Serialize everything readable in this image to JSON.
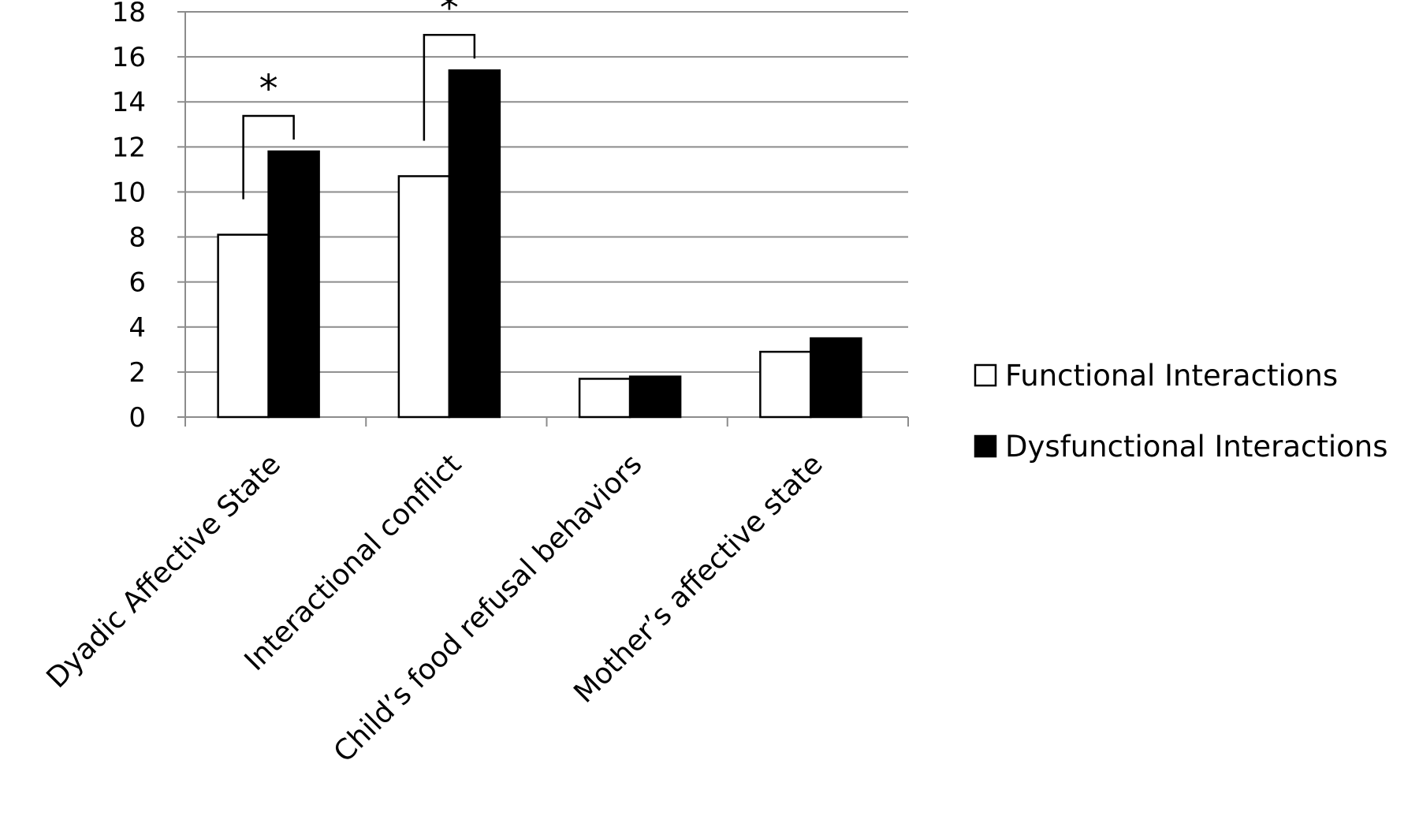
{
  "chart_data": {
    "type": "bar",
    "categories": [
      "Dyadic Affective State",
      "Interactional conflict",
      "Child’s food refusal behaviors",
      "Mother’s affective state"
    ],
    "series": [
      {
        "name": "Functional Interactions",
        "values": [
          8.1,
          10.7,
          1.7,
          2.9
        ],
        "color": "#ffffff"
      },
      {
        "name": "Dysfunctional Interactions",
        "values": [
          11.8,
          15.4,
          1.8,
          3.5
        ],
        "color": "#000000"
      }
    ],
    "ylim": [
      0,
      18
    ],
    "yticks": [
      0,
      2,
      4,
      6,
      8,
      10,
      12,
      14,
      16,
      18
    ],
    "grid": true,
    "legend_position": "right",
    "significance": [
      {
        "category_index": 0,
        "label": "*"
      },
      {
        "category_index": 1,
        "label": "*"
      }
    ]
  }
}
